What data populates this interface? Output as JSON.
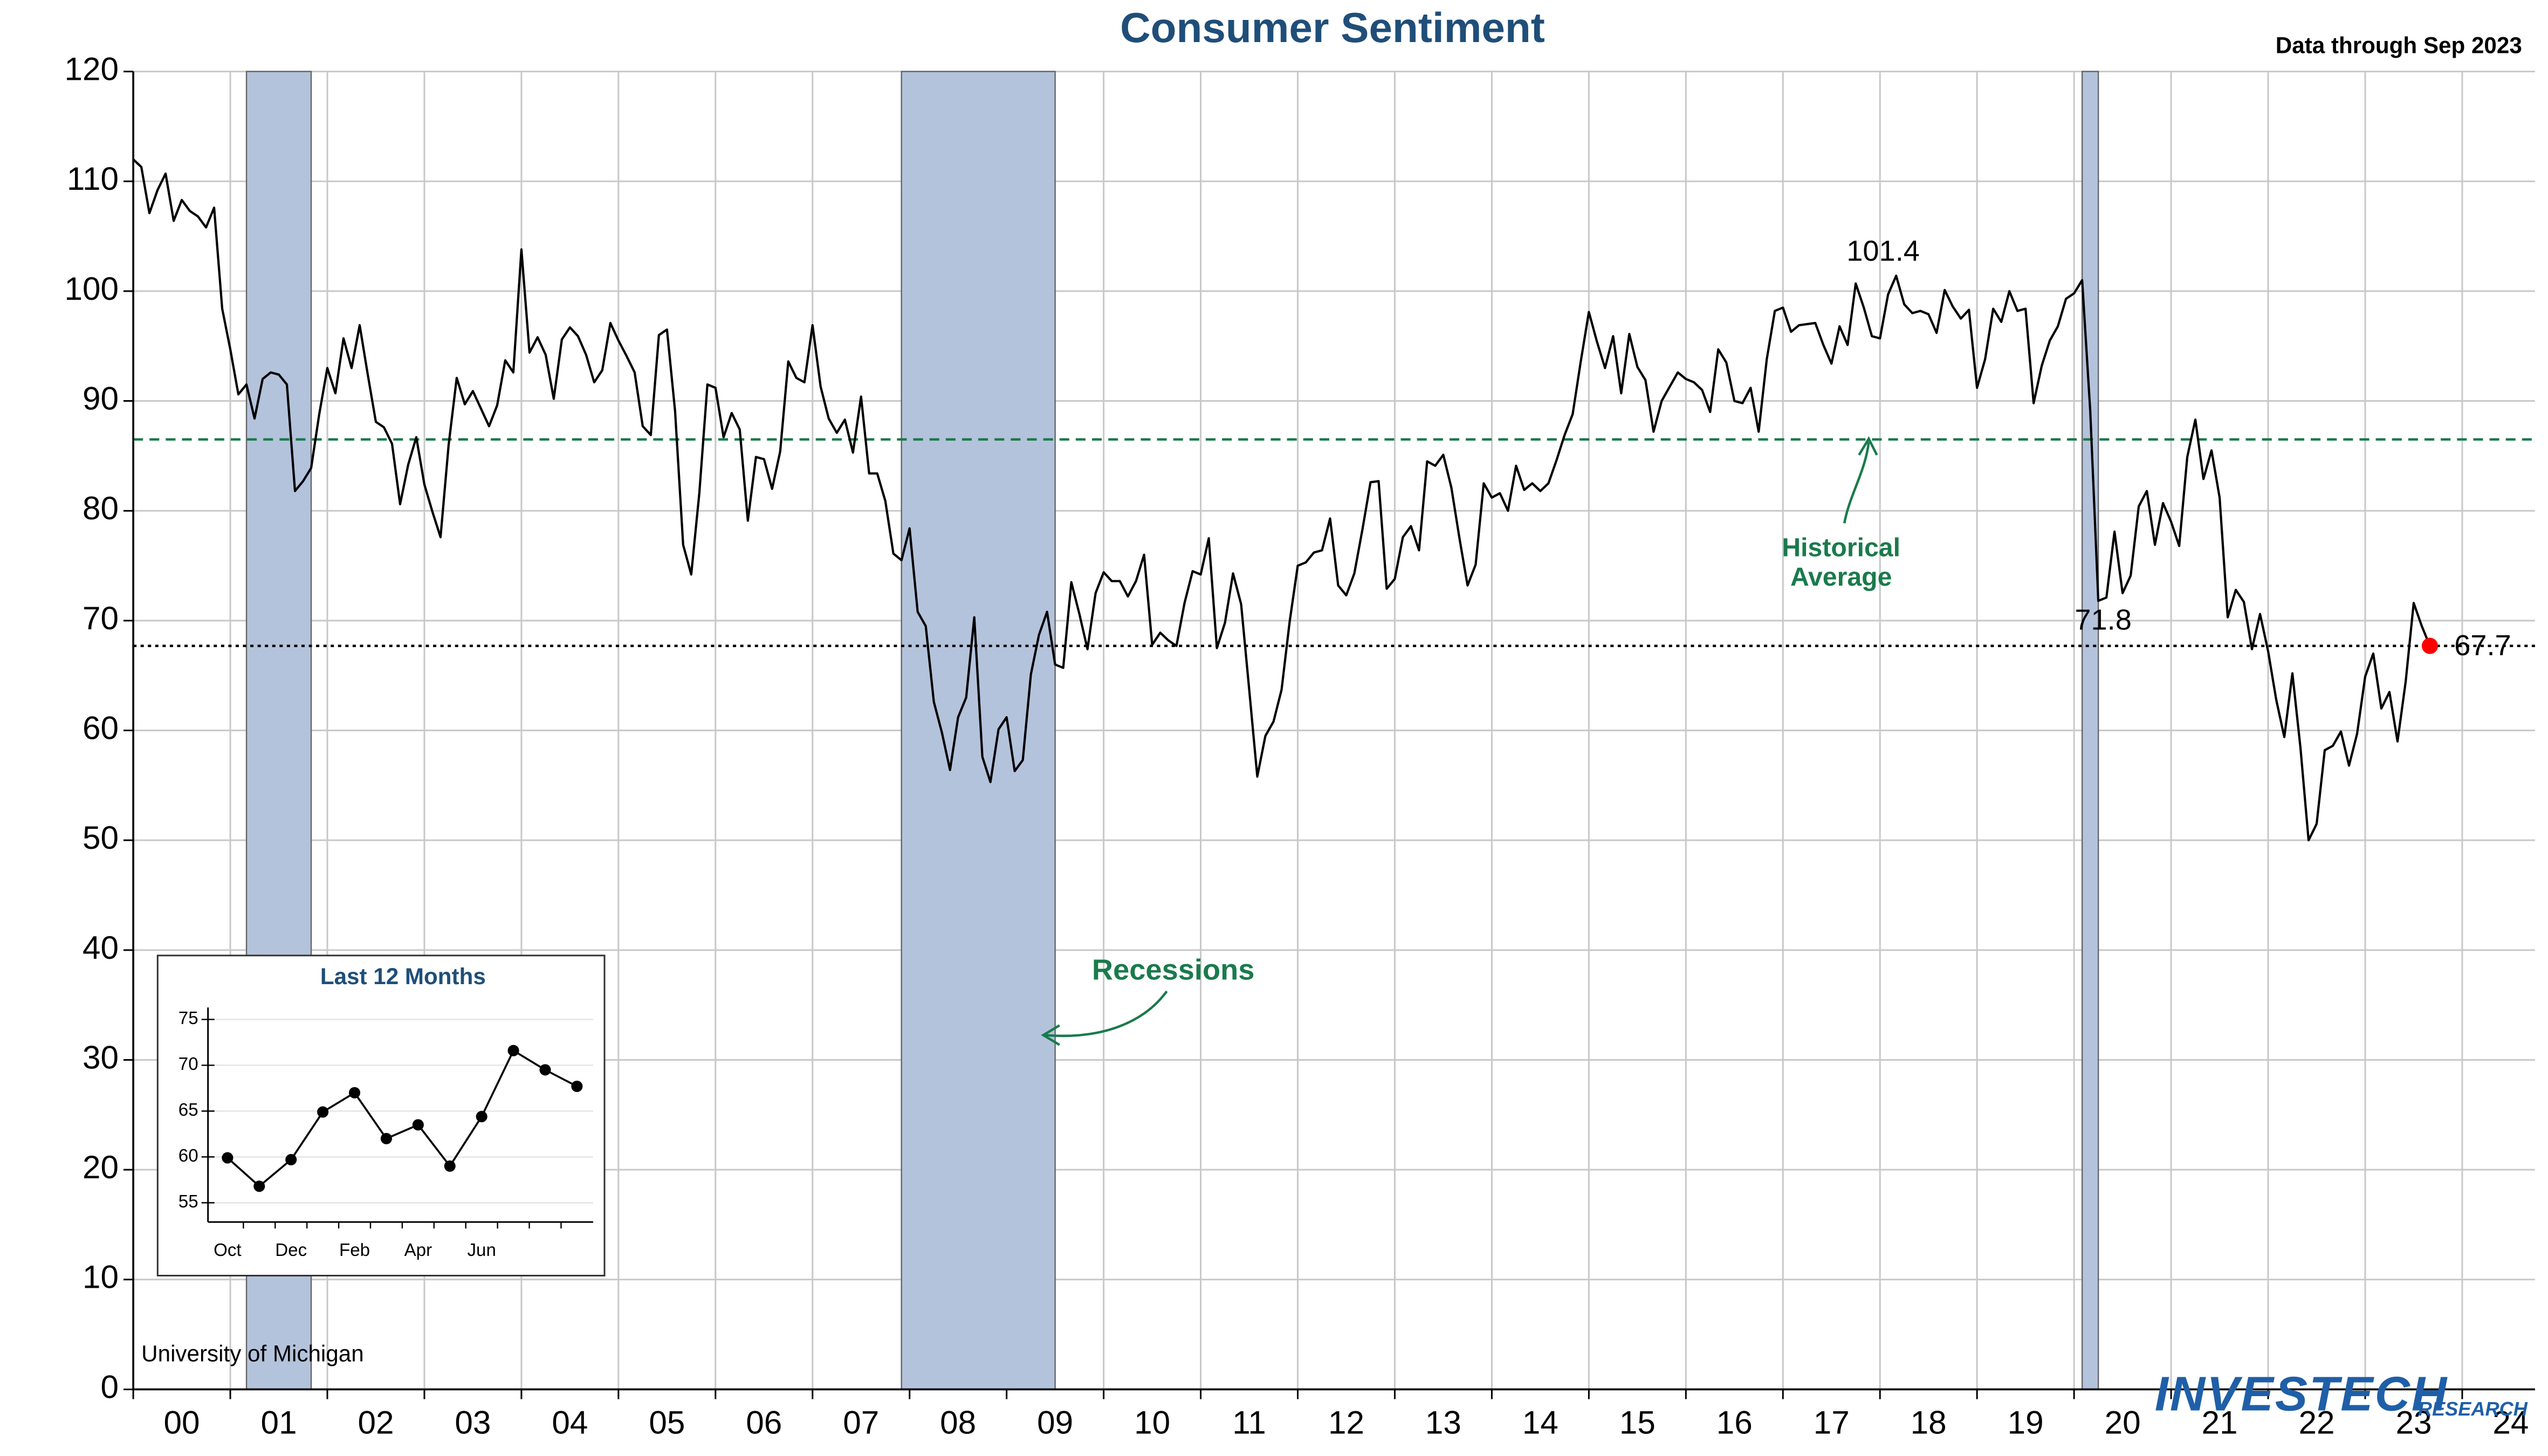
{
  "chart_data": [
    {
      "type": "line",
      "title": "Consumer Sentiment",
      "subtitle": "Data through Sep 2023",
      "source": "University of Michigan",
      "logo": {
        "name": "INVESTECH",
        "tagline": "RESEARCH"
      },
      "color": "#000000",
      "xlim": [
        0,
        297
      ],
      "xticks": [
        {
          "value": 0,
          "label": "00"
        },
        {
          "value": 12,
          "label": "01"
        },
        {
          "value": 24,
          "label": "02"
        },
        {
          "value": 36,
          "label": "03"
        },
        {
          "value": 48,
          "label": "04"
        },
        {
          "value": 60,
          "label": "05"
        },
        {
          "value": 72,
          "label": "06"
        },
        {
          "value": 84,
          "label": "07"
        },
        {
          "value": 96,
          "label": "08"
        },
        {
          "value": 108,
          "label": "09"
        },
        {
          "value": 120,
          "label": "10"
        },
        {
          "value": 132,
          "label": "11"
        },
        {
          "value": 144,
          "label": "12"
        },
        {
          "value": 156,
          "label": "13"
        },
        {
          "value": 168,
          "label": "14"
        },
        {
          "value": 180,
          "label": "15"
        },
        {
          "value": 192,
          "label": "16"
        },
        {
          "value": 204,
          "label": "17"
        },
        {
          "value": 216,
          "label": "18"
        },
        {
          "value": 228,
          "label": "19"
        },
        {
          "value": 240,
          "label": "20"
        },
        {
          "value": 252,
          "label": "21"
        },
        {
          "value": 264,
          "label": "22"
        },
        {
          "value": 276,
          "label": "23"
        },
        {
          "value": 288,
          "label": "24"
        }
      ],
      "ylim": [
        0,
        120
      ],
      "yticks": [
        0,
        10,
        20,
        30,
        40,
        50,
        60,
        70,
        80,
        90,
        100,
        110,
        120
      ],
      "grid": true,
      "recessions": {
        "label": "Recessions",
        "color": "#b4c3dc",
        "ranges": [
          [
            14,
            22
          ],
          [
            95,
            114
          ],
          [
            241,
            243
          ]
        ]
      },
      "reference_lines": [
        {
          "value": 86.5,
          "label": [
            "Historical",
            "Average"
          ],
          "color": "#1a7a4c",
          "style": "dashed"
        },
        {
          "value": 67.7,
          "color": "#000000",
          "style": "dotted"
        }
      ],
      "annotations": [
        {
          "x": 218,
          "y": 101.4
        },
        {
          "x": 243,
          "y": 71.8
        },
        {
          "x": 284,
          "y": 67.7,
          "marker": "#ff0000"
        }
      ],
      "x": [
        0,
        1,
        2,
        3,
        4,
        5,
        6,
        7,
        8,
        9,
        10,
        11,
        12,
        13,
        14,
        15,
        16,
        17,
        18,
        19,
        20,
        21,
        22,
        23,
        24,
        25,
        26,
        27,
        28,
        29,
        30,
        31,
        32,
        33,
        34,
        35,
        36,
        37,
        38,
        39,
        40,
        41,
        42,
        43,
        44,
        45,
        46,
        47,
        48,
        49,
        50,
        51,
        52,
        53,
        54,
        55,
        56,
        57,
        58,
        59,
        60,
        61,
        62,
        63,
        64,
        65,
        66,
        67,
        68,
        69,
        70,
        71,
        72,
        73,
        74,
        75,
        76,
        77,
        78,
        79,
        80,
        81,
        82,
        83,
        84,
        85,
        86,
        87,
        88,
        89,
        90,
        91,
        92,
        93,
        94,
        95,
        96,
        97,
        98,
        99,
        100,
        101,
        102,
        103,
        104,
        105,
        106,
        107,
        108,
        109,
        110,
        111,
        112,
        113,
        114,
        115,
        116,
        117,
        118,
        119,
        120,
        121,
        122,
        123,
        124,
        125,
        126,
        127,
        128,
        129,
        130,
        131,
        132,
        133,
        134,
        135,
        136,
        137,
        138,
        139,
        140,
        141,
        142,
        143,
        144,
        145,
        146,
        147,
        148,
        149,
        150,
        151,
        152,
        153,
        154,
        155,
        156,
        157,
        158,
        159,
        160,
        161,
        162,
        163,
        164,
        165,
        166,
        167,
        168,
        169,
        170,
        171,
        172,
        173,
        174,
        175,
        176,
        177,
        178,
        179,
        180,
        181,
        182,
        183,
        184,
        185,
        186,
        187,
        188,
        189,
        190,
        191,
        192,
        193,
        194,
        195,
        196,
        197,
        198,
        199,
        200,
        201,
        202,
        203,
        204,
        205,
        206,
        207,
        208,
        209,
        210,
        211,
        212,
        213,
        214,
        215,
        216,
        217,
        218,
        219,
        220,
        221,
        222,
        223,
        224,
        225,
        226,
        227,
        228,
        229,
        230,
        231,
        232,
        233,
        234,
        235,
        236,
        237,
        238,
        239,
        240,
        241,
        242,
        243,
        244,
        245,
        246,
        247,
        248,
        249,
        250,
        251,
        252,
        253,
        254,
        255,
        256,
        257,
        258,
        259,
        260,
        261,
        262,
        263,
        264,
        265,
        266,
        267,
        268,
        269,
        270,
        271,
        272,
        273,
        274,
        275,
        276,
        277,
        278,
        279,
        280,
        281,
        282,
        283,
        284
      ],
      "values": [
        112.0,
        111.3,
        107.1,
        109.2,
        110.7,
        106.4,
        108.3,
        107.3,
        106.8,
        105.8,
        107.6,
        98.4,
        94.7,
        90.6,
        91.5,
        88.4,
        92.0,
        92.6,
        92.4,
        91.5,
        81.8,
        82.7,
        83.9,
        88.8,
        93.0,
        90.7,
        95.7,
        93.0,
        96.9,
        92.4,
        88.1,
        87.6,
        86.1,
        80.6,
        84.2,
        86.7,
        82.4,
        79.9,
        77.6,
        86.0,
        92.1,
        89.7,
        90.9,
        89.3,
        87.7,
        89.6,
        93.7,
        92.6,
        103.8,
        94.4,
        95.8,
        94.2,
        90.2,
        95.6,
        96.7,
        95.9,
        94.2,
        91.7,
        92.8,
        97.1,
        95.5,
        94.1,
        92.6,
        87.7,
        86.9,
        96.0,
        96.5,
        89.1,
        76.9,
        74.2,
        81.6,
        91.5,
        91.2,
        86.7,
        88.9,
        87.4,
        79.1,
        84.9,
        84.7,
        82.0,
        85.4,
        93.6,
        92.1,
        91.7,
        96.9,
        91.3,
        88.4,
        87.1,
        88.3,
        85.3,
        90.4,
        83.4,
        83.4,
        80.9,
        76.1,
        75.5,
        78.4,
        70.8,
        69.5,
        62.6,
        59.8,
        56.4,
        61.2,
        63.0,
        70.3,
        57.6,
        55.3,
        60.1,
        61.2,
        56.3,
        57.3,
        65.1,
        68.7,
        70.8,
        66.0,
        65.7,
        73.5,
        70.6,
        67.4,
        72.5,
        74.4,
        73.6,
        73.6,
        72.2,
        73.6,
        76.0,
        67.8,
        68.9,
        68.2,
        67.7,
        71.6,
        74.5,
        74.2,
        77.5,
        67.5,
        69.8,
        74.3,
        71.5,
        63.7,
        55.8,
        59.5,
        60.8,
        63.7,
        69.9,
        75.0,
        75.3,
        76.2,
        76.4,
        79.3,
        73.2,
        72.3,
        74.3,
        78.3,
        82.6,
        82.7,
        72.9,
        73.8,
        77.6,
        78.6,
        76.4,
        84.5,
        84.1,
        85.1,
        82.1,
        77.5,
        73.2,
        75.1,
        82.5,
        81.2,
        81.6,
        80.0,
        84.1,
        81.9,
        82.5,
        81.8,
        82.5,
        84.6,
        86.9,
        88.8,
        93.6,
        98.1,
        95.4,
        93.0,
        95.9,
        90.7,
        96.1,
        93.1,
        91.9,
        87.2,
        90.0,
        91.3,
        92.6,
        92.0,
        91.7,
        91.0,
        89.0,
        94.7,
        93.5,
        90.0,
        89.8,
        91.2,
        87.2,
        93.8,
        98.2,
        98.5,
        96.3,
        96.9,
        97.0,
        97.1,
        95.1,
        93.4,
        96.8,
        95.1,
        100.7,
        98.5,
        95.9,
        95.7,
        99.7,
        101.4,
        98.8,
        98.0,
        98.2,
        97.9,
        96.2,
        100.1,
        98.6,
        97.5,
        98.3,
        91.2,
        93.8,
        98.4,
        97.2,
        100.0,
        98.2,
        98.4,
        89.8,
        93.2,
        95.5,
        96.8,
        99.3,
        99.8,
        101.0,
        89.1,
        71.8,
        72.1,
        78.1,
        72.5,
        74.1,
        80.4,
        81.8,
        76.9,
        80.7,
        79.0,
        76.8,
        84.9,
        88.3,
        82.9,
        85.5,
        81.2,
        70.3,
        72.8,
        71.7,
        67.4,
        70.6,
        67.2,
        62.8,
        59.4,
        65.2,
        58.4,
        50.0,
        51.5,
        58.2,
        58.6,
        59.9,
        56.8,
        59.7,
        64.9,
        67.0,
        62.0,
        63.5,
        59.0,
        64.4,
        71.6,
        69.5,
        67.7
      ]
    },
    {
      "type": "line",
      "title": "Last 12 Months",
      "color": "#000000",
      "categories": [
        "Oct",
        null,
        "Dec",
        null,
        "Feb",
        null,
        "Apr",
        null,
        "Jun",
        null,
        null,
        null
      ],
      "values": [
        59.9,
        56.8,
        59.7,
        64.9,
        67.0,
        62.0,
        63.5,
        59.0,
        64.4,
        71.6,
        69.5,
        67.7
      ],
      "ylim": [
        52.9,
        76.3
      ],
      "yticks": [
        55,
        60,
        65,
        70,
        75
      ],
      "grid": true
    }
  ]
}
